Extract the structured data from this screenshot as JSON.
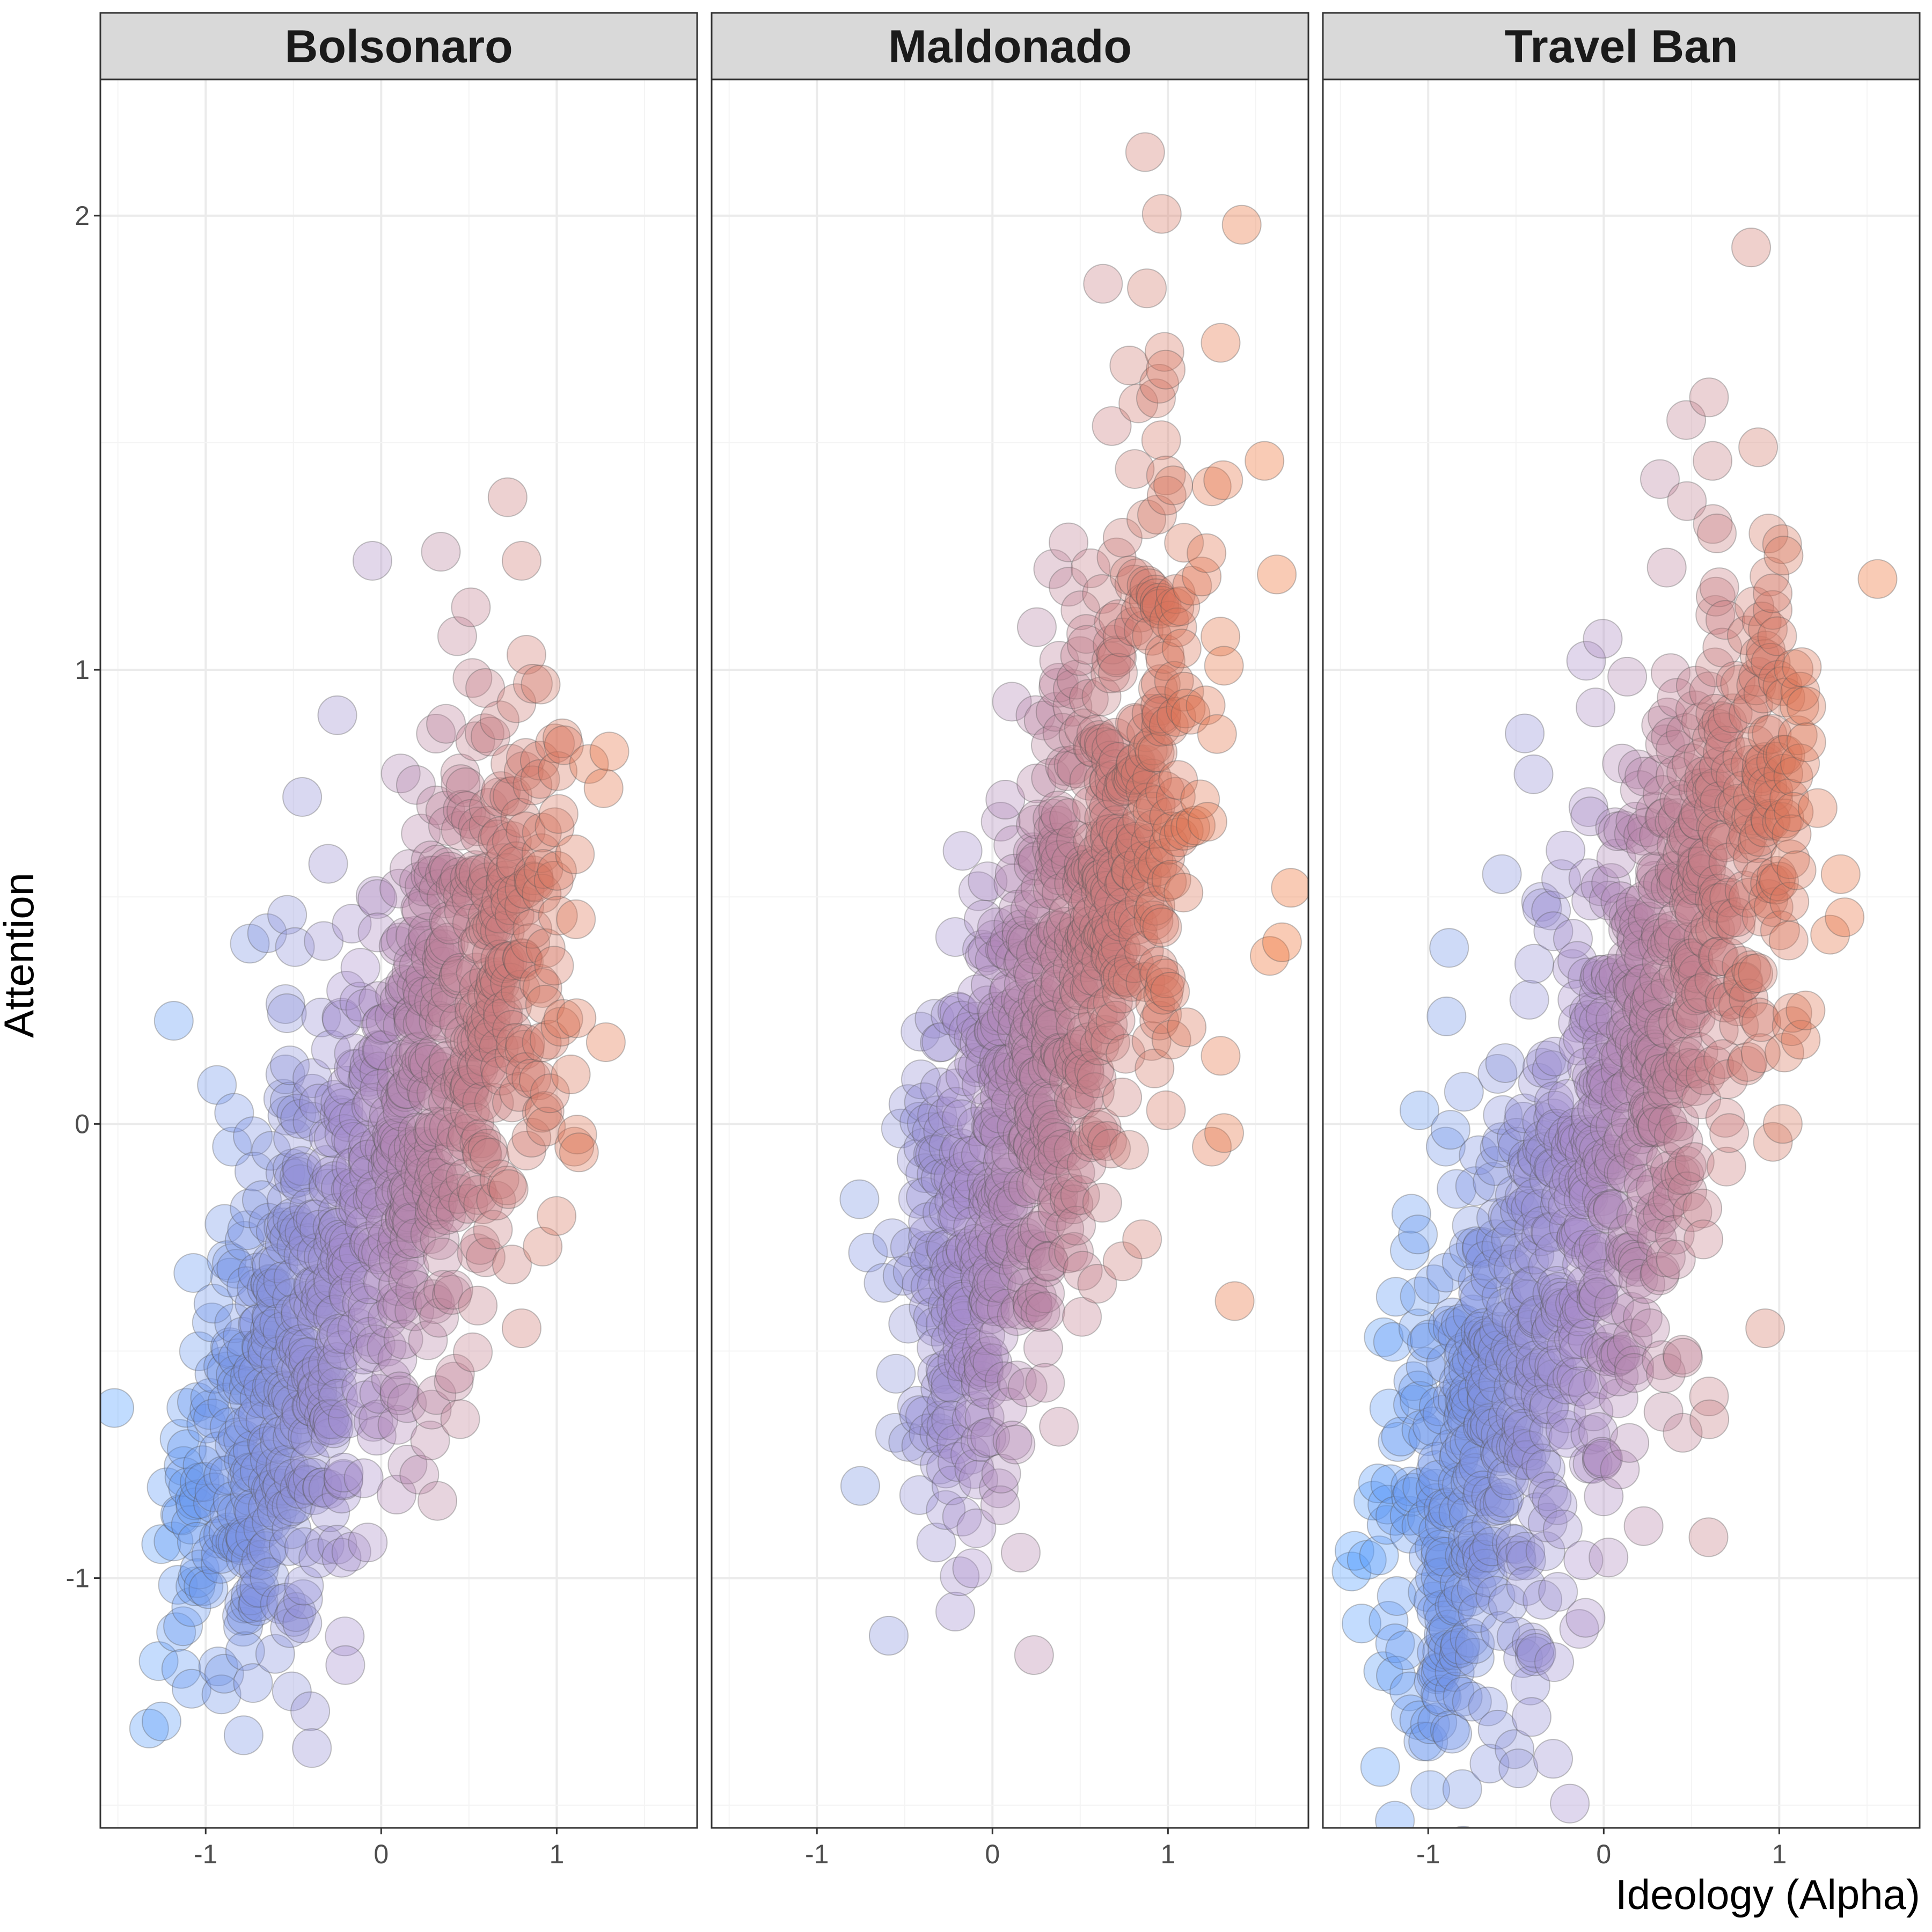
{
  "chart_data": {
    "type": "scatter",
    "xlabel": "Ideology (Alpha)",
    "ylabel": "Attention",
    "xlim": [
      -1.6,
      1.8
    ],
    "ylim": [
      -1.55,
      2.3
    ],
    "x_ticks": [
      -1,
      0,
      1
    ],
    "y_ticks": [
      -1,
      0,
      1,
      2
    ],
    "grid": true,
    "legend": "none",
    "color_scale": {
      "low": "#4d9cff",
      "mid": "#a98cc9",
      "high": "#ee6a2a"
    },
    "facets": [
      {
        "title": "Bolsonaro",
        "cloud": {
          "n": 900,
          "x_start": -0.95,
          "x_end": 0.85,
          "y_start": -0.88,
          "y_end": 0.55,
          "x_spread": 0.22,
          "y_spread": 0.28
        },
        "points": [
          {
            "x": -1.05,
            "y": -0.92
          },
          {
            "x": -1.1,
            "y": -0.8
          },
          {
            "x": -0.95,
            "y": -0.55
          },
          {
            "x": -0.88,
            "y": -0.3
          },
          {
            "x": -0.85,
            "y": -0.05
          },
          {
            "x": -0.65,
            "y": 0.42
          },
          {
            "x": -0.45,
            "y": 0.72
          },
          {
            "x": -0.52,
            "y": -1.11
          },
          {
            "x": -0.1,
            "y": -0.78
          },
          {
            "x": 0.15,
            "y": -0.75
          },
          {
            "x": 0.32,
            "y": -0.83
          },
          {
            "x": 0.45,
            "y": -0.65
          },
          {
            "x": 0.42,
            "y": -0.55
          },
          {
            "x": -0.05,
            "y": 1.24
          },
          {
            "x": 0.34,
            "y": 1.26
          },
          {
            "x": 0.72,
            "y": 1.38
          },
          {
            "x": 0.8,
            "y": 1.24
          },
          {
            "x": 1.3,
            "y": 0.82
          },
          {
            "x": 1.28,
            "y": 0.18
          },
          {
            "x": 1.1,
            "y": -0.05
          },
          {
            "x": 0.92,
            "y": -0.27
          },
          {
            "x": 0.8,
            "y": -0.45
          },
          {
            "x": -0.25,
            "y": 0.9
          },
          {
            "x": 0.55,
            "y": -0.4
          }
        ]
      },
      {
        "title": "Maldonado",
        "cloud": {
          "n": 800,
          "x_start": -0.35,
          "x_end": 1.0,
          "y_start": -0.55,
          "y_end": 1.0,
          "x_spread": 0.18,
          "y_spread": 0.3
        },
        "points": [
          {
            "x": -0.62,
            "y": -0.35
          },
          {
            "x": -0.55,
            "y": -0.55
          },
          {
            "x": -0.48,
            "y": -0.7
          },
          {
            "x": -0.3,
            "y": -0.75
          },
          {
            "x": 0.05,
            "y": -0.77
          },
          {
            "x": 0.2,
            "y": -0.58
          },
          {
            "x": 0.3,
            "y": -0.57
          },
          {
            "x": -0.05,
            "y": 0.45
          },
          {
            "x": 0.12,
            "y": 0.53
          },
          {
            "x": 0.87,
            "y": 2.14
          },
          {
            "x": 1.42,
            "y": 1.98
          },
          {
            "x": 0.63,
            "y": 1.85
          },
          {
            "x": 0.88,
            "y": 1.84
          },
          {
            "x": 1.3,
            "y": 1.72
          },
          {
            "x": 0.98,
            "y": 1.7
          },
          {
            "x": 0.78,
            "y": 1.67
          },
          {
            "x": 0.95,
            "y": 1.63
          },
          {
            "x": 1.55,
            "y": 1.46
          },
          {
            "x": 1.62,
            "y": 1.21
          },
          {
            "x": 1.7,
            "y": 0.52
          },
          {
            "x": 1.65,
            "y": 0.4
          },
          {
            "x": 1.58,
            "y": 0.37
          },
          {
            "x": 1.32,
            "y": -0.02
          },
          {
            "x": 1.25,
            "y": -0.05
          },
          {
            "x": 1.38,
            "y": -0.39
          },
          {
            "x": 1.3,
            "y": 0.15
          },
          {
            "x": 0.55,
            "y": 0.18
          },
          {
            "x": 0.38,
            "y": 1.02
          },
          {
            "x": 0.25,
            "y": 0.75
          }
        ]
      },
      {
        "title": "Travel Ban",
        "cloud": {
          "n": 1000,
          "x_start": -1.05,
          "x_end": 0.95,
          "y_start": -1.05,
          "y_end": 0.85,
          "x_spread": 0.22,
          "y_spread": 0.3
        },
        "points": [
          {
            "x": -1.42,
            "y": -0.94
          },
          {
            "x": -1.38,
            "y": -1.1
          },
          {
            "x": -1.35,
            "y": -0.96
          },
          {
            "x": -1.28,
            "y": -0.95
          },
          {
            "x": -1.0,
            "y": -1.36
          },
          {
            "x": -1.1,
            "y": -1.3
          },
          {
            "x": -0.85,
            "y": -1.25
          },
          {
            "x": -0.5,
            "y": -0.95
          },
          {
            "x": 0.0,
            "y": -0.82
          },
          {
            "x": 0.45,
            "y": -0.68
          },
          {
            "x": 0.6,
            "y": -0.6
          },
          {
            "x": 0.33,
            "y": -0.52
          },
          {
            "x": -0.45,
            "y": 0.86
          },
          {
            "x": -0.4,
            "y": 0.77
          },
          {
            "x": -0.58,
            "y": 0.55
          },
          {
            "x": -0.1,
            "y": 1.02
          },
          {
            "x": -0.3,
            "y": 0.47
          },
          {
            "x": 0.84,
            "y": 1.93
          },
          {
            "x": 0.6,
            "y": 1.6
          },
          {
            "x": 0.88,
            "y": 1.49
          },
          {
            "x": 0.47,
            "y": 1.55
          },
          {
            "x": 0.62,
            "y": 1.46
          },
          {
            "x": 0.32,
            "y": 1.42
          },
          {
            "x": 1.56,
            "y": 1.2
          },
          {
            "x": 1.15,
            "y": 0.25
          },
          {
            "x": 1.02,
            "y": 0.0
          },
          {
            "x": 0.92,
            "y": -0.45
          },
          {
            "x": 1.35,
            "y": 0.55
          },
          {
            "x": -1.05,
            "y": 0.03
          },
          {
            "x": -0.9,
            "y": -0.05
          },
          {
            "x": -1.2,
            "y": -0.48
          }
        ]
      }
    ]
  }
}
